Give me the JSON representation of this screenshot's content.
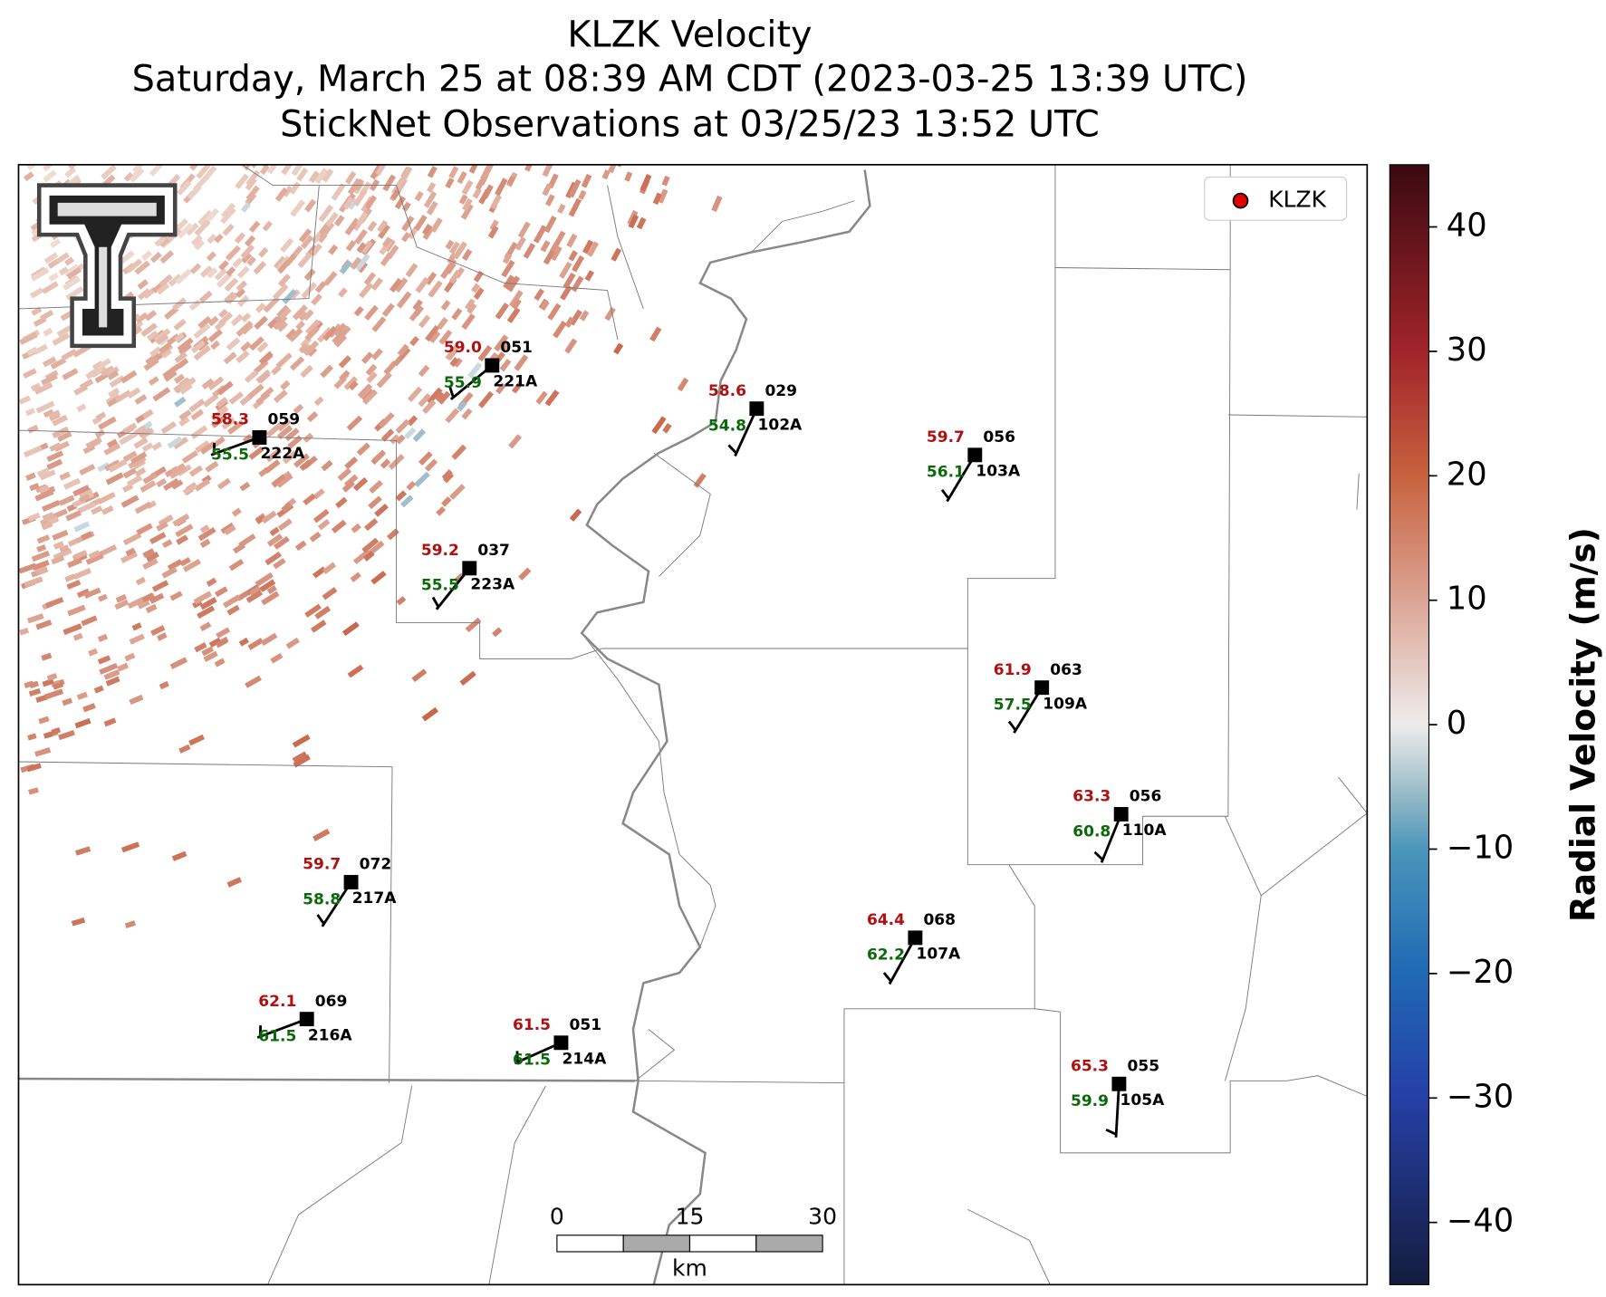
{
  "title": [
    "KLZK Velocity",
    "Saturday, March 25 at 08:39 AM CDT (2023-03-25 13:39 UTC)",
    "StickNet Observations at 03/25/23 13:52 UTC"
  ],
  "legend": {
    "label": "KLZK"
  },
  "stations": [
    {
      "temperature": "58.3",
      "direction": "059",
      "dewpoint": "55.5",
      "id": "222A"
    },
    {
      "temperature": "59.0",
      "direction": "051",
      "dewpoint": "55.9",
      "id": "221A"
    },
    {
      "temperature": "58.6",
      "direction": "029",
      "dewpoint": "54.8",
      "id": "102A"
    },
    {
      "temperature": "59.7",
      "direction": "056",
      "dewpoint": "56.1",
      "id": "103A"
    },
    {
      "temperature": "59.2",
      "direction": "037",
      "dewpoint": "55.5",
      "id": "223A"
    },
    {
      "temperature": "61.9",
      "direction": "063",
      "dewpoint": "57.5",
      "id": "109A"
    },
    {
      "temperature": "63.3",
      "direction": "056",
      "dewpoint": "60.8",
      "id": "110A"
    },
    {
      "temperature": "59.7",
      "direction": "072",
      "dewpoint": "58.8",
      "id": "217A"
    },
    {
      "temperature": "64.4",
      "direction": "068",
      "dewpoint": "62.2",
      "id": "107A"
    },
    {
      "temperature": "62.1",
      "direction": "069",
      "dewpoint": "61.5",
      "id": "216A"
    },
    {
      "temperature": "61.5",
      "direction": "051",
      "dewpoint": "61.5",
      "id": "214A"
    },
    {
      "temperature": "65.3",
      "direction": "055",
      "dewpoint": "59.9",
      "id": "105A"
    }
  ],
  "scale_bar": {
    "ticks": [
      0,
      15,
      30
    ],
    "unit": "km"
  },
  "colorbar": {
    "label": "Radial Velocity (m/s)",
    "lim": [
      -45,
      45
    ],
    "ticks": [
      {
        "value": -40,
        "label": "−40"
      },
      {
        "value": -30,
        "label": "−30"
      },
      {
        "value": -20,
        "label": "−20"
      },
      {
        "value": -10,
        "label": "−10"
      },
      0,
      10,
      20,
      30,
      40
    ]
  }
}
